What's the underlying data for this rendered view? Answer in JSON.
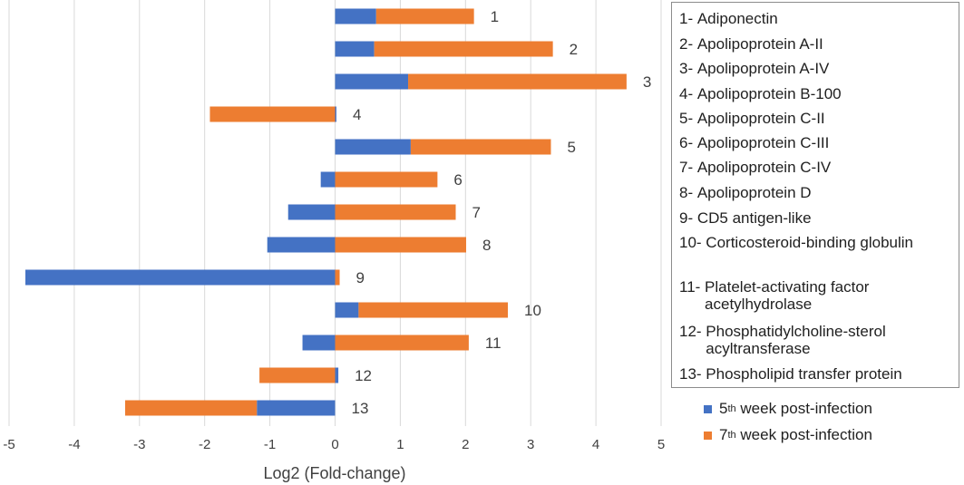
{
  "chart_data": {
    "type": "bar",
    "orientation": "horizontal",
    "stacked": true,
    "categories": [
      "1",
      "2",
      "3",
      "4",
      "5",
      "6",
      "7",
      "8",
      "9",
      "10",
      "11",
      "12",
      "13"
    ],
    "series": [
      {
        "name": "5th week post-infection",
        "color": "#4472c4",
        "values": [
          0.63,
          0.6,
          1.12,
          0.02,
          1.16,
          -0.22,
          -0.72,
          -1.04,
          -4.75,
          0.36,
          -0.5,
          0.05,
          -1.2
        ]
      },
      {
        "name": "7th week post-infection",
        "color": "#ed7d31",
        "values": [
          1.5,
          2.74,
          3.35,
          -1.92,
          2.15,
          1.57,
          1.85,
          2.01,
          0.07,
          2.29,
          2.05,
          -1.16,
          -2.02
        ]
      }
    ],
    "xlabel": "Log2 (Fold-change)",
    "xlim": [
      -5,
      5
    ],
    "xticks": [
      "-5",
      "-4",
      "-3",
      "-2",
      "-1",
      "0",
      "1",
      "2",
      "3",
      "4",
      "5"
    ],
    "grid": true,
    "legend_position": "right",
    "protein_legend": [
      {
        "num": "1- ",
        "name": "Adiponectin"
      },
      {
        "num": "2- ",
        "name": "Apolipoprotein A-II"
      },
      {
        "num": "3- ",
        "name": "Apolipoprotein A-IV"
      },
      {
        "num": "4- ",
        "name": "Apolipoprotein B-100"
      },
      {
        "num": "5- ",
        "name": "Apolipoprotein C-II"
      },
      {
        "num": "6- ",
        "name": "Apolipoprotein C-III"
      },
      {
        "num": "7- ",
        "name": "Apolipoprotein C-IV"
      },
      {
        "num": "8- ",
        "name": "Apolipoprotein D"
      },
      {
        "num": "9- ",
        "name": "CD5 antigen-like"
      },
      {
        "num": "10- ",
        "name": "Corticosteroid-binding globulin"
      },
      {
        "num": "11- ",
        "name": "Platelet-activating factor acetylhydrolase"
      },
      {
        "num": "12- ",
        "name": "Phosphatidylcholine-sterol acyltransferase"
      },
      {
        "num": "13- ",
        "name": "Phospholipid transfer protein"
      }
    ],
    "series_legend": [
      {
        "num": "5",
        "sup": "th",
        "rest": " week post-infection",
        "color": "#4472c4"
      },
      {
        "num": "7",
        "sup": "th",
        "rest": " week post-infection",
        "color": "#ed7d31"
      }
    ]
  }
}
